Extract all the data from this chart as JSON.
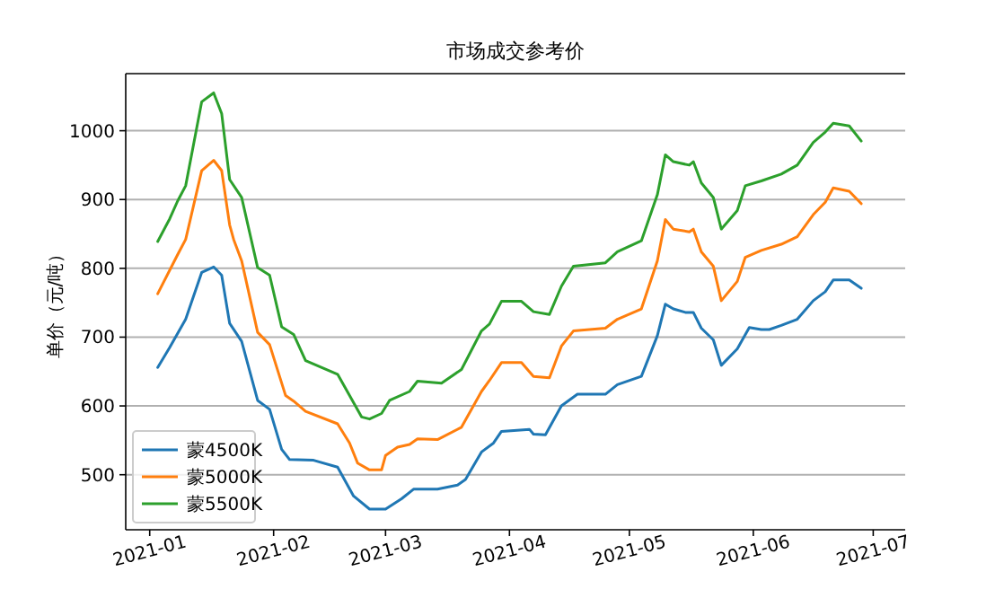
{
  "chart_data": {
    "type": "line",
    "title": "市场成交参考价",
    "ylabel": "单价（元/吨）",
    "xlim": [
      "2020-12-26",
      "2021-07-09"
    ],
    "xticks": [
      "2021-01",
      "2021-02",
      "2021-03",
      "2021-04",
      "2021-05",
      "2021-06",
      "2021-07"
    ],
    "ylim": [
      420,
      1083
    ],
    "yticks": [
      500,
      600,
      700,
      800,
      900,
      1000
    ],
    "grid": "y",
    "legend": "bottom left",
    "series": [
      {
        "name": "蒙4500K",
        "color": "#1f77b4",
        "x": [
          "2021-01-03",
          "2021-01-06",
          "2021-01-10",
          "2021-01-14",
          "2021-01-17",
          "2021-01-19",
          "2021-01-21",
          "2021-01-24",
          "2021-01-28",
          "2021-01-31",
          "2021-02-03",
          "2021-02-05",
          "2021-02-11",
          "2021-02-17",
          "2021-02-21",
          "2021-02-25",
          "2021-03-01",
          "2021-03-05",
          "2021-03-08",
          "2021-03-14",
          "2021-03-19",
          "2021-03-21",
          "2021-03-25",
          "2021-03-28",
          "2021-03-30",
          "2021-04-06",
          "2021-04-07",
          "2021-04-10",
          "2021-04-14",
          "2021-04-18",
          "2021-04-25",
          "2021-04-28",
          "2021-05-04",
          "2021-05-08",
          "2021-05-10",
          "2021-05-12",
          "2021-05-15",
          "2021-05-17",
          "2021-05-19",
          "2021-05-22",
          "2021-05-24",
          "2021-05-28",
          "2021-05-31",
          "2021-06-03",
          "2021-06-05",
          "2021-06-08",
          "2021-06-12",
          "2021-06-16",
          "2021-06-19",
          "2021-06-21",
          "2021-06-25",
          "2021-06-28"
        ],
        "values": [
          656,
          685,
          726,
          794,
          802,
          790,
          720,
          694,
          608,
          595,
          537,
          522,
          521,
          511,
          469,
          450,
          450,
          465,
          479,
          479,
          485,
          493,
          533,
          546,
          563,
          566,
          559,
          558,
          600,
          617,
          617,
          631,
          643,
          702,
          748,
          741,
          736,
          736,
          713,
          696,
          659,
          683,
          714,
          711,
          711,
          717,
          726,
          753,
          766,
          783,
          783,
          771
        ]
      },
      {
        "name": "蒙5000K",
        "color": "#ff7f0e",
        "x": [
          "2021-01-03",
          "2021-01-08",
          "2021-01-10",
          "2021-01-14",
          "2021-01-17",
          "2021-01-19",
          "2021-01-21",
          "2021-01-22",
          "2021-01-24",
          "2021-01-28",
          "2021-01-31",
          "2021-02-04",
          "2021-02-06",
          "2021-02-09",
          "2021-02-17",
          "2021-02-20",
          "2021-02-22",
          "2021-02-25",
          "2021-02-28",
          "2021-03-01",
          "2021-03-04",
          "2021-03-07",
          "2021-03-09",
          "2021-03-14",
          "2021-03-20",
          "2021-03-25",
          "2021-03-27",
          "2021-03-30",
          "2021-04-04",
          "2021-04-07",
          "2021-04-11",
          "2021-04-14",
          "2021-04-17",
          "2021-04-25",
          "2021-04-28",
          "2021-05-04",
          "2021-05-08",
          "2021-05-10",
          "2021-05-12",
          "2021-05-16",
          "2021-05-17",
          "2021-05-19",
          "2021-05-22",
          "2021-05-24",
          "2021-05-28",
          "2021-05-30",
          "2021-06-03",
          "2021-06-08",
          "2021-06-12",
          "2021-06-16",
          "2021-06-19",
          "2021-06-21",
          "2021-06-25",
          "2021-06-28"
        ],
        "values": [
          763,
          820,
          842,
          942,
          957,
          942,
          863,
          842,
          811,
          707,
          689,
          615,
          607,
          592,
          574,
          546,
          517,
          507,
          507,
          528,
          540,
          544,
          552,
          551,
          569,
          621,
          637,
          663,
          663,
          643,
          641,
          687,
          709,
          713,
          726,
          741,
          811,
          871,
          857,
          853,
          857,
          824,
          803,
          753,
          781,
          816,
          826,
          835,
          846,
          878,
          896,
          917,
          912,
          894
        ]
      },
      {
        "name": "蒙5500K",
        "color": "#2ca02c",
        "x": [
          "2021-01-03",
          "2021-01-06",
          "2021-01-08",
          "2021-01-10",
          "2021-01-14",
          "2021-01-17",
          "2021-01-19",
          "2021-01-21",
          "2021-01-24",
          "2021-01-28",
          "2021-01-31",
          "2021-02-03",
          "2021-02-06",
          "2021-02-09",
          "2021-02-17",
          "2021-02-20",
          "2021-02-23",
          "2021-02-25",
          "2021-02-28",
          "2021-03-02",
          "2021-03-07",
          "2021-03-09",
          "2021-03-15",
          "2021-03-20",
          "2021-03-25",
          "2021-03-27",
          "2021-03-30",
          "2021-04-04",
          "2021-04-07",
          "2021-04-11",
          "2021-04-14",
          "2021-04-17",
          "2021-04-25",
          "2021-04-28",
          "2021-05-04",
          "2021-05-08",
          "2021-05-10",
          "2021-05-12",
          "2021-05-16",
          "2021-05-17",
          "2021-05-19",
          "2021-05-22",
          "2021-05-24",
          "2021-05-28",
          "2021-05-30",
          "2021-06-03",
          "2021-06-08",
          "2021-06-12",
          "2021-06-16",
          "2021-06-19",
          "2021-06-21",
          "2021-06-25",
          "2021-06-28"
        ],
        "values": [
          839,
          872,
          898,
          920,
          1042,
          1055,
          1025,
          929,
          903,
          801,
          790,
          715,
          704,
          666,
          646,
          615,
          584,
          581,
          589,
          608,
          621,
          636,
          633,
          653,
          709,
          719,
          752,
          752,
          737,
          733,
          774,
          803,
          808,
          824,
          840,
          907,
          965,
          955,
          950,
          955,
          924,
          903,
          857,
          884,
          920,
          927,
          937,
          950,
          983,
          998,
          1011,
          1007,
          985
        ]
      }
    ]
  }
}
